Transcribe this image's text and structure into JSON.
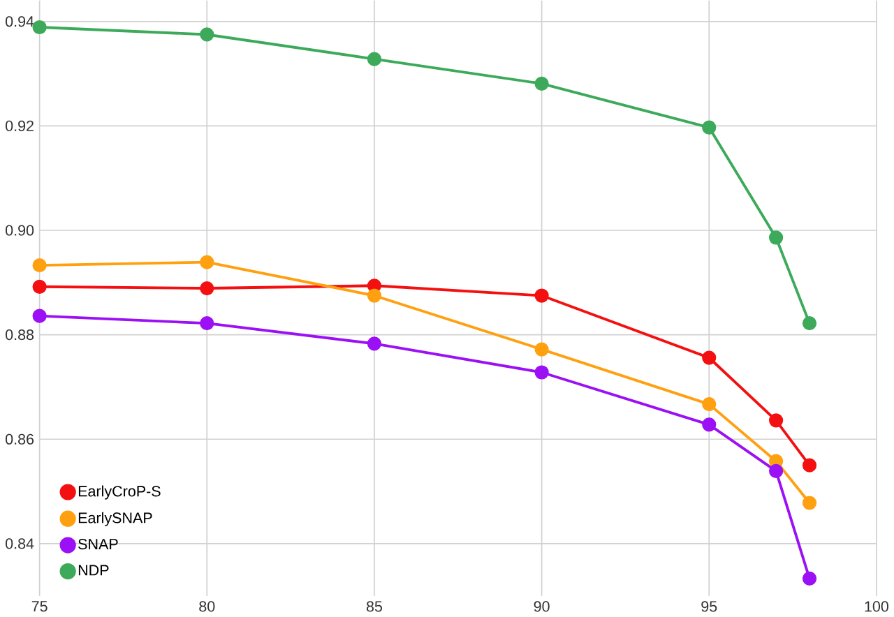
{
  "chart_data": {
    "type": "line",
    "x": [
      75,
      80,
      85,
      90,
      95,
      97,
      98
    ],
    "series": [
      {
        "name": "EarlyCroP-S",
        "color": "#f41010",
        "values": [
          0.8892,
          0.8889,
          0.8894,
          0.8875,
          0.8756,
          0.8636,
          0.855
        ]
      },
      {
        "name": "EarlySNAP",
        "color": "#ffa010",
        "values": [
          0.8933,
          0.8939,
          0.8875,
          0.8772,
          0.8667,
          0.8558,
          0.8478
        ]
      },
      {
        "name": "SNAP",
        "color": "#9b10f4",
        "values": [
          0.8836,
          0.8822,
          0.8783,
          0.8728,
          0.8628,
          0.8539,
          0.8333
        ]
      },
      {
        "name": "NDP",
        "color": "#3caa5a",
        "values": [
          0.9389,
          0.9375,
          0.9328,
          0.9281,
          0.9197,
          0.8986,
          0.8822
        ]
      }
    ],
    "xlim": [
      75,
      100
    ],
    "xticks": [
      75,
      80,
      85,
      90,
      95,
      100
    ],
    "ylim": [
      0.83,
      0.944
    ],
    "yticks": [
      0.84,
      0.86,
      0.88,
      {
        "value": 0.9,
        "label": "0.90"
      },
      0.92,
      0.94
    ],
    "grid": true,
    "legend": "bottom left",
    "marker": "circle",
    "line_style": "solid"
  }
}
